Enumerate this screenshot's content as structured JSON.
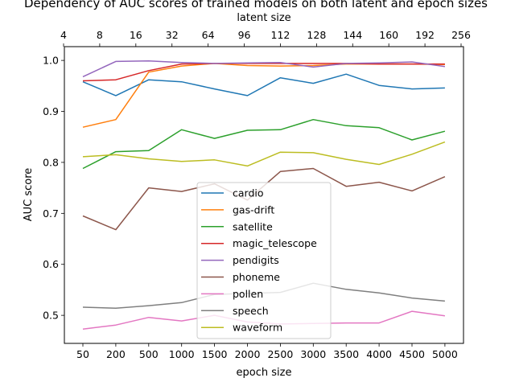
{
  "chart_data": {
    "type": "line",
    "title": "Dependency of AUC scores of trained models on both latent and epoch sizes",
    "xlabel": "epoch size",
    "ylabel": "AUC score",
    "x2label": "latent size",
    "categories": [
      "50",
      "200",
      "500",
      "1000",
      "1500",
      "2000",
      "2500",
      "3000",
      "3500",
      "4000",
      "4500",
      "5000"
    ],
    "top_ticks": [
      "4",
      "8",
      "16",
      "32",
      "64",
      "96",
      "112",
      "128",
      "144",
      "160",
      "192",
      "256"
    ],
    "yticks": [
      "0.5",
      "0.6",
      "0.7",
      "0.8",
      "0.9",
      "1.0"
    ],
    "ylim": [
      0.445,
      1.027
    ],
    "grid": false,
    "legend_position": "center-bottom",
    "series": [
      {
        "name": "cardio",
        "color": "#1f77b4",
        "values": [
          0.958,
          0.931,
          0.962,
          0.958,
          0.944,
          0.931,
          0.966,
          0.955,
          0.973,
          0.951,
          0.944,
          0.946
        ]
      },
      {
        "name": "gas-drift",
        "color": "#ff7f0e",
        "values": [
          0.869,
          0.884,
          0.977,
          0.989,
          0.994,
          0.99,
          0.989,
          0.99,
          0.993,
          0.993,
          0.993,
          0.992
        ]
      },
      {
        "name": "satellite",
        "color": "#2ca02c",
        "values": [
          0.788,
          0.821,
          0.823,
          0.864,
          0.847,
          0.863,
          0.864,
          0.884,
          0.872,
          0.868,
          0.844,
          0.861
        ]
      },
      {
        "name": "magic_telescope",
        "color": "#d62728",
        "values": [
          0.96,
          0.962,
          0.98,
          0.993,
          0.994,
          0.994,
          0.994,
          0.994,
          0.994,
          0.993,
          0.993,
          0.993
        ]
      },
      {
        "name": "pendigits",
        "color": "#9467bd",
        "values": [
          0.968,
          0.998,
          0.999,
          0.996,
          0.994,
          0.995,
          0.996,
          0.987,
          0.994,
          0.995,
          0.997,
          0.988
        ]
      },
      {
        "name": "phoneme",
        "color": "#8c564b",
        "values": [
          0.695,
          0.668,
          0.75,
          0.743,
          0.758,
          0.726,
          0.782,
          0.788,
          0.753,
          0.761,
          0.744,
          0.772
        ]
      },
      {
        "name": "pollen",
        "color": "#e377c2",
        "values": [
          0.473,
          0.481,
          0.496,
          0.489,
          0.5,
          0.487,
          0.483,
          0.484,
          0.485,
          0.485,
          0.508,
          0.499
        ]
      },
      {
        "name": "speech",
        "color": "#7f7f7f",
        "values": [
          0.516,
          0.514,
          0.519,
          0.525,
          0.541,
          0.543,
          0.545,
          0.563,
          0.551,
          0.544,
          0.534,
          0.528
        ]
      },
      {
        "name": "waveform",
        "color": "#bcbd22",
        "values": [
          0.811,
          0.815,
          0.807,
          0.802,
          0.805,
          0.793,
          0.82,
          0.819,
          0.806,
          0.796,
          0.816,
          0.84
        ]
      }
    ]
  }
}
